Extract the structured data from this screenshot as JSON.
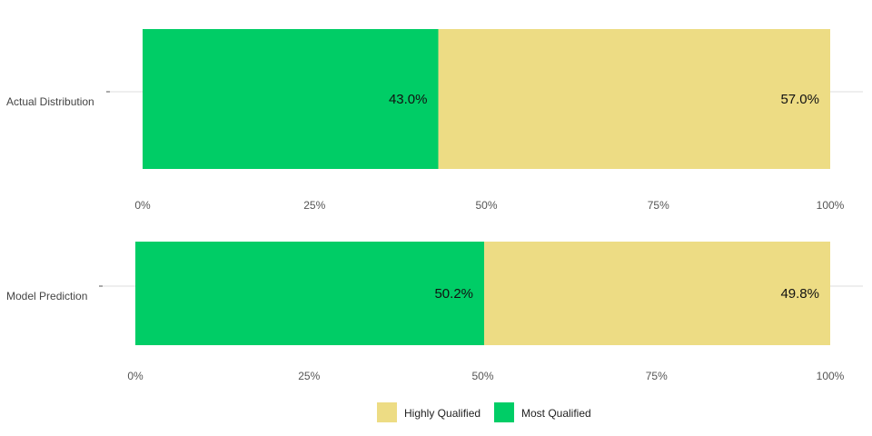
{
  "chart_data": [
    {
      "type": "bar",
      "orientation": "horizontal",
      "stacked": true,
      "categories": [
        "Actual Distribution"
      ],
      "series": [
        {
          "name": "Most Qualified",
          "values": [
            43.0
          ],
          "label": "43.0%"
        },
        {
          "name": "Highly Qualified",
          "values": [
            57.0
          ],
          "label": "57.0%"
        }
      ],
      "xlim": [
        0,
        100
      ],
      "x_ticks": [
        "0%",
        "25%",
        "50%",
        "75%",
        "100%"
      ],
      "grid": "horizontal-major"
    },
    {
      "type": "bar",
      "orientation": "horizontal",
      "stacked": true,
      "categories": [
        "Model Prediction"
      ],
      "series": [
        {
          "name": "Most Qualified",
          "values": [
            50.2
          ],
          "label": "50.2%"
        },
        {
          "name": "Highly Qualified",
          "values": [
            49.8
          ],
          "label": "49.8%"
        }
      ],
      "xlim": [
        0,
        100
      ],
      "x_ticks": [
        "0%",
        "25%",
        "50%",
        "75%",
        "100%"
      ],
      "grid": "horizontal-major"
    }
  ],
  "legend": {
    "placement": "bottom-center",
    "items": [
      {
        "label": "Highly Qualified",
        "color": "#EDDC84"
      },
      {
        "label": "Most Qualified",
        "color": "#00CD66"
      }
    ]
  },
  "colors": {
    "Most Qualified": "#00CD66",
    "Highly Qualified": "#EDDC84"
  }
}
